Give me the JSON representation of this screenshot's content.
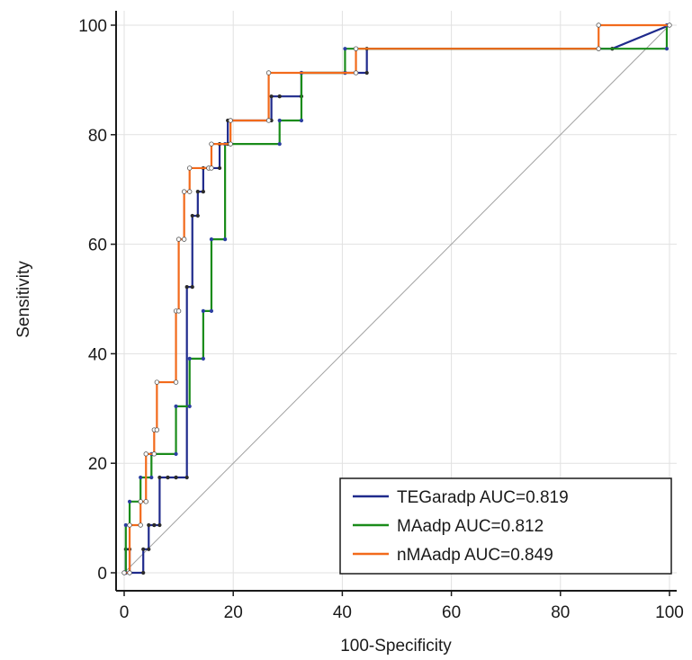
{
  "chart_data": {
    "type": "line",
    "title": "",
    "xlabel": "100-Specificity",
    "ylabel": "Sensitivity",
    "xlim": [
      0,
      100
    ],
    "ylim": [
      0,
      100
    ],
    "xticks": [
      0,
      20,
      40,
      60,
      80,
      100
    ],
    "yticks": [
      0,
      20,
      40,
      60,
      80,
      100
    ],
    "grid": true,
    "legend_position": "bottom-right",
    "reference_line": {
      "x": [
        0,
        100
      ],
      "y": [
        0,
        100
      ],
      "color": "#a0a0a0"
    },
    "series": [
      {
        "name": "TEGaradp AUC=0.819",
        "color": "#1f2a8c",
        "marker_color": "#2b2b2b",
        "x": [
          0,
          0.3,
          0.3,
          1,
          1,
          3.5,
          3.5,
          4.5,
          4.5,
          5.5,
          5.5,
          6.5,
          6.5,
          8,
          8,
          9.5,
          9.5,
          11.5,
          11.5,
          12.5,
          12.5,
          13.5,
          13.5,
          14.5,
          14.5,
          17.5,
          17.5,
          19,
          19,
          27,
          27,
          28.5,
          28.5,
          32.5,
          32.5,
          40.5,
          40.5,
          44.5,
          44.5,
          89.5,
          89.5,
          100
        ],
        "y": [
          0,
          0,
          4.3,
          4.3,
          0,
          0,
          4.3,
          4.3,
          8.7,
          8.7,
          8.7,
          8.7,
          17.4,
          17.4,
          17.4,
          17.4,
          17.4,
          17.4,
          52.2,
          52.2,
          65.2,
          65.2,
          69.6,
          69.6,
          73.9,
          73.9,
          78.3,
          78.3,
          82.6,
          82.6,
          87,
          87,
          87,
          87,
          91.3,
          91.3,
          91.3,
          91.3,
          95.7,
          95.7,
          95.7,
          100
        ]
      },
      {
        "name": "MAadp AUC=0.812",
        "color": "#1a8c1a",
        "marker_color": "#2b3fa0",
        "x": [
          0,
          0.3,
          0.3,
          1,
          1,
          3,
          3,
          5,
          5,
          9.5,
          9.5,
          12,
          12,
          14.5,
          14.5,
          16,
          16,
          18.5,
          18.5,
          28.5,
          28.5,
          32.5,
          32.5,
          40.5,
          40.5,
          99.5,
          99.5,
          100
        ],
        "y": [
          0,
          0,
          8.7,
          8.7,
          13,
          13,
          17.4,
          17.4,
          21.7,
          21.7,
          30.4,
          30.4,
          39.1,
          39.1,
          47.8,
          47.8,
          60.9,
          60.9,
          78.3,
          78.3,
          82.6,
          82.6,
          91.3,
          91.3,
          95.7,
          95.7,
          100,
          100
        ]
      },
      {
        "name": "nMAadp AUC=0.849",
        "color": "#f26a1b",
        "marker_color": "#ffffff",
        "x": [
          0,
          1,
          1,
          3,
          3,
          4,
          4,
          5.5,
          5.5,
          6,
          6,
          9.5,
          9.5,
          10,
          10,
          11,
          11,
          12,
          12,
          15.5,
          15.5,
          16,
          16,
          19.5,
          19.5,
          26.5,
          26.5,
          42.5,
          42.5,
          87,
          87,
          100
        ],
        "y": [
          0,
          0,
          8.7,
          8.7,
          13,
          13,
          21.7,
          21.7,
          26.1,
          26.1,
          34.8,
          34.8,
          47.8,
          47.8,
          60.9,
          60.9,
          69.6,
          69.6,
          73.9,
          73.9,
          73.9,
          73.9,
          78.3,
          78.3,
          82.6,
          82.6,
          91.3,
          91.3,
          95.7,
          95.7,
          100,
          100
        ]
      }
    ]
  }
}
